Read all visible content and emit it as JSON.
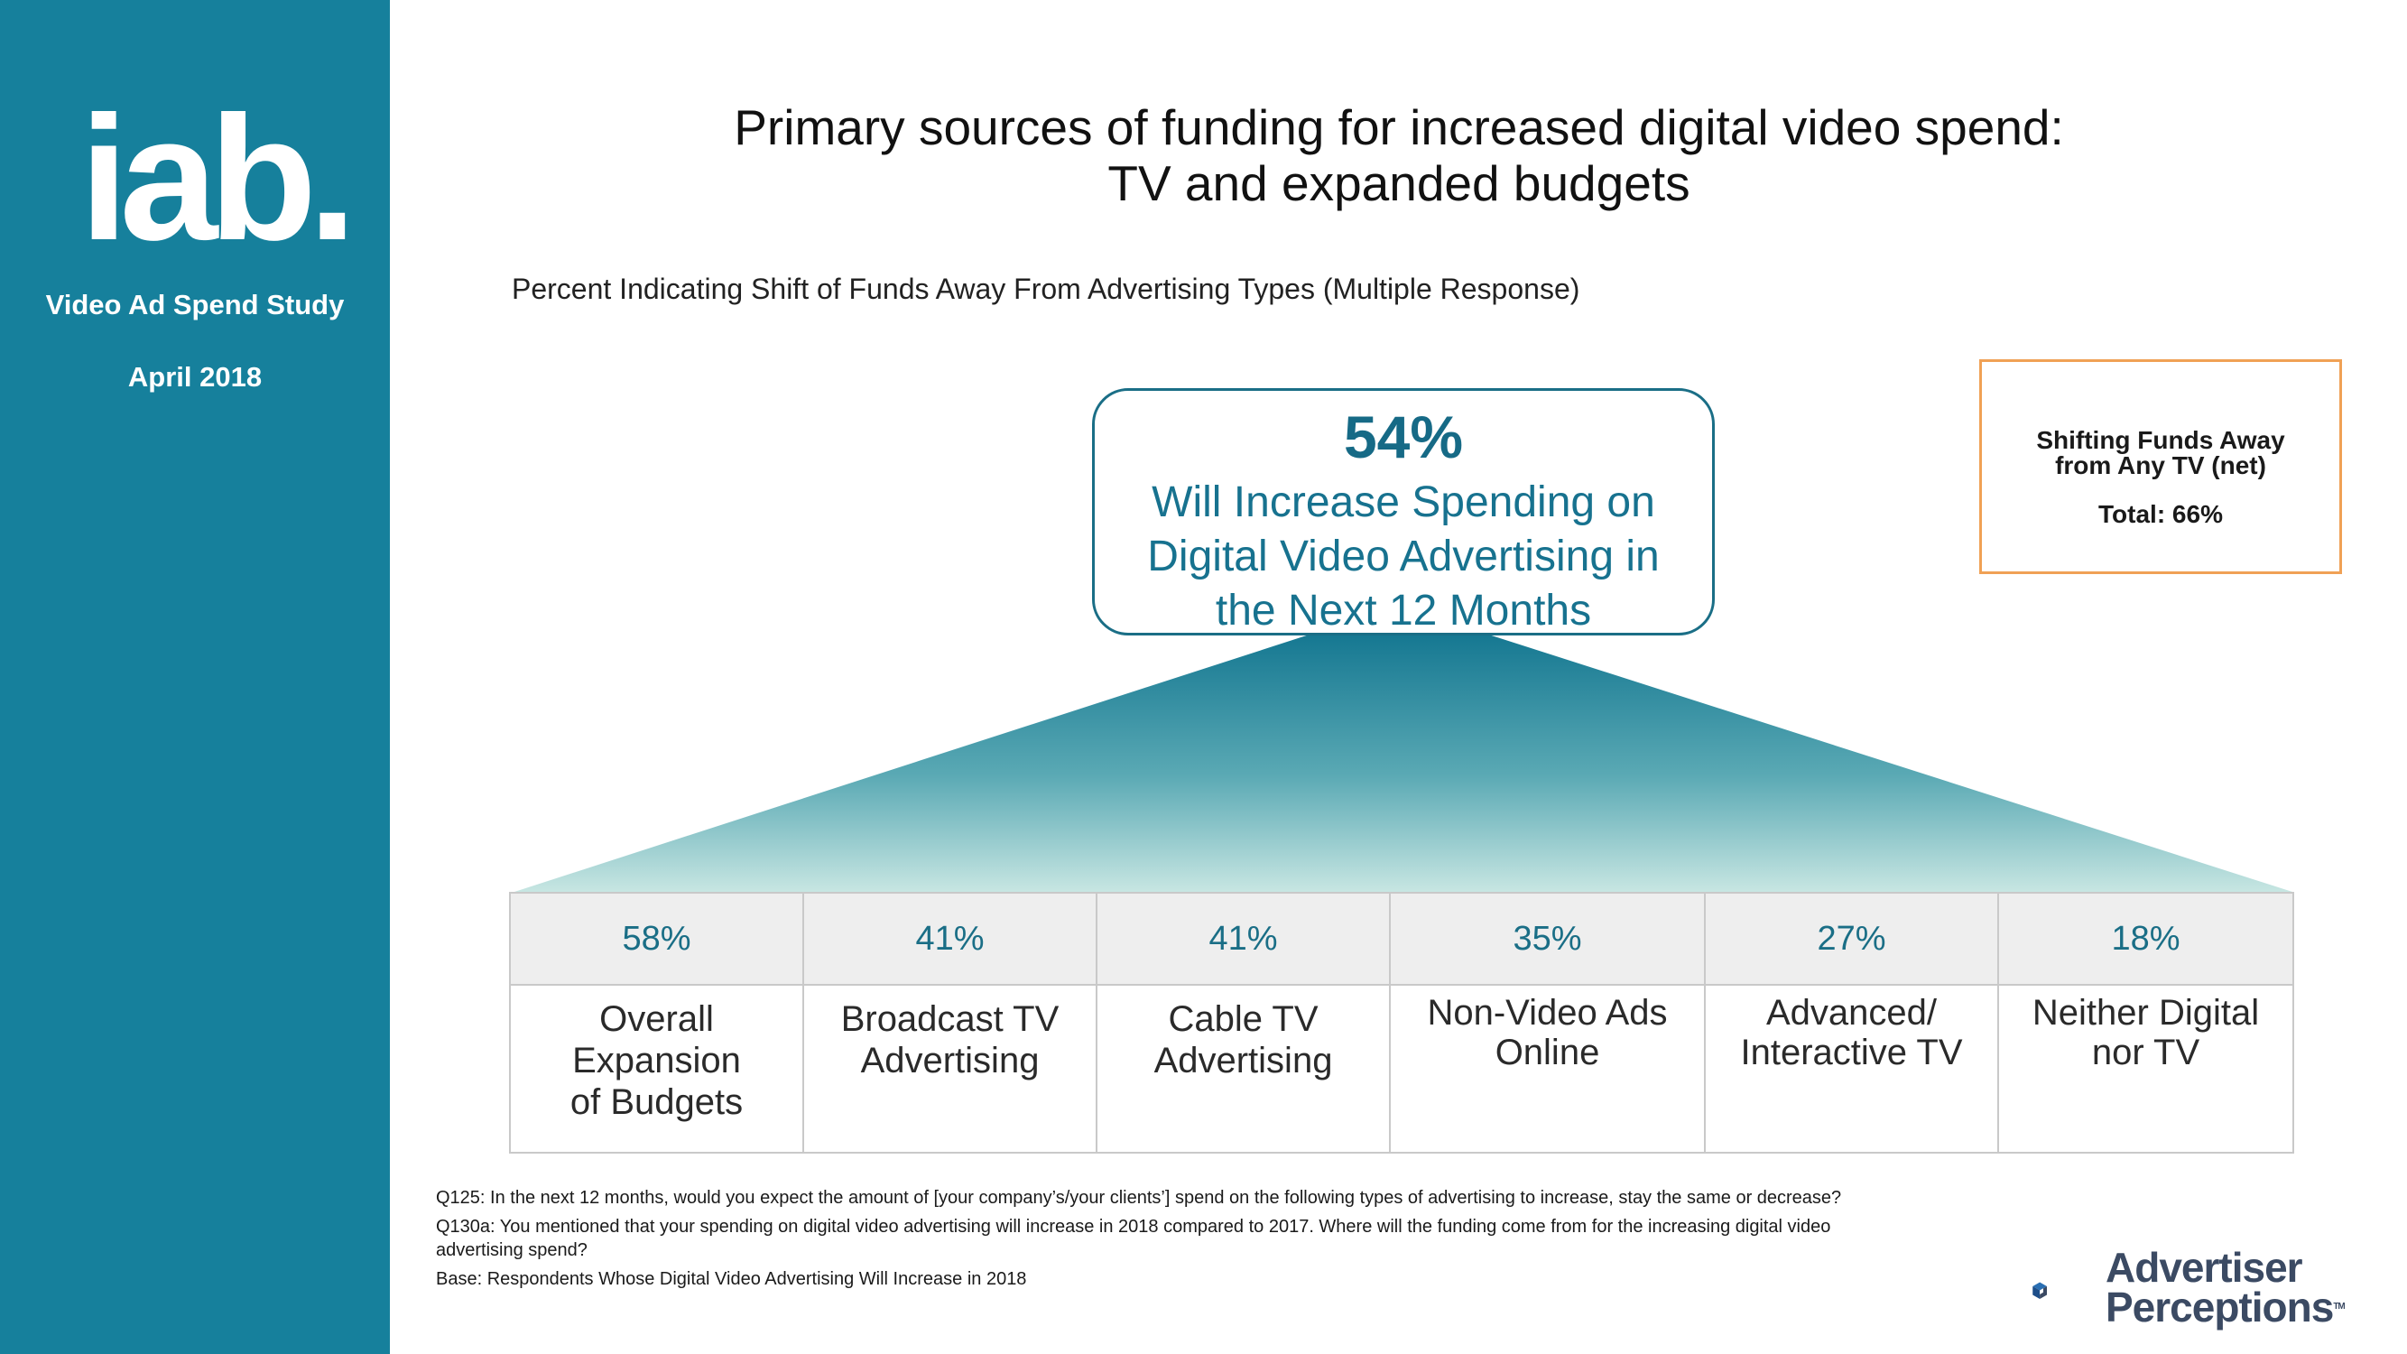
{
  "sidebar": {
    "logo_text": "iab.",
    "study": "Video Ad Spend Study",
    "date": "April 2018"
  },
  "header": {
    "title_line1": "Primary sources of funding for increased digital video spend:",
    "title_line2": "TV and expanded budgets",
    "subtitle": "Percent Indicating Shift of Funds Away From Advertising Types (Multiple Response)"
  },
  "callout": {
    "percent": "54%",
    "text_line1": "Will Increase Spending on",
    "text_line2": "Digital Video Advertising in",
    "text_line3": "the Next 12 Months"
  },
  "net_box": {
    "label_line1": "Shifting Funds Away",
    "label_line2": "from Any TV (net)",
    "total": "Total: 66%"
  },
  "chart_data": {
    "type": "table",
    "title": "Percent Indicating Shift of Funds Away From Advertising Types (Multiple Response)",
    "columns": [
      {
        "value": 58,
        "label": "58%",
        "line1": "Overall Expansion",
        "line2": "of Budgets"
      },
      {
        "value": 41,
        "label": "41%",
        "line1": "Broadcast TV",
        "line2": "Advertising"
      },
      {
        "value": 41,
        "label": "41%",
        "line1": "Cable TV",
        "line2": "Advertising"
      },
      {
        "value": 35,
        "label": "35%",
        "line1": "Non-Video Ads",
        "line2": "Online"
      },
      {
        "value": 27,
        "label": "27%",
        "line1": "Advanced/",
        "line2": "Interactive TV"
      },
      {
        "value": 18,
        "label": "18%",
        "line1": "Neither Digital",
        "line2": "nor TV"
      }
    ],
    "headline": {
      "value": 54,
      "label": "54%"
    },
    "net": {
      "label": "Shifting Funds Away from Any TV (net)",
      "value": 66
    }
  },
  "footnotes": {
    "q125": "Q125: In the next 12 months, would you expect the amount of [your company’s/your clients’] spend on the following types of advertising to increase, stay the same or decrease?",
    "q130a": "Q130a: You mentioned that your spending on digital video advertising will increase in 2018 compared to 2017. Where will the funding come from for the increasing digital video advertising spend?",
    "base": "Base: Respondents Whose Digital Video Advertising Will Increase in 2018"
  },
  "brand": {
    "line1": "Advertiser",
    "line2": "Perceptions",
    "tm": "TM"
  },
  "colors": {
    "sidebar": "#16809c",
    "accent": "#1a6e86",
    "orange": "#f0a155"
  }
}
